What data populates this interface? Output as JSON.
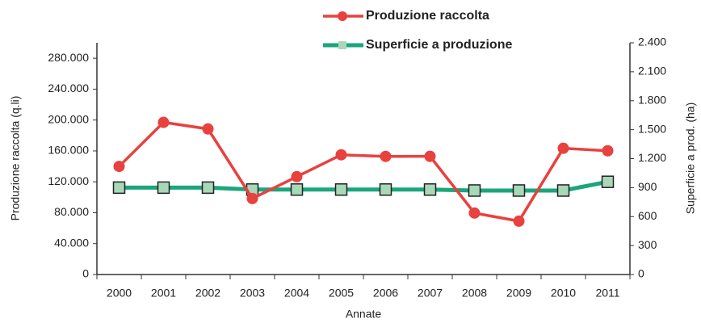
{
  "chart_data": {
    "type": "line",
    "legend": "top",
    "grid": false,
    "xlabel": "Annate",
    "ylabel": "Produzione raccolta (q.li)",
    "y2label": "Superficie a prod. (ha)",
    "categories": [
      "2000",
      "2001",
      "2002",
      "2003",
      "2004",
      "2005",
      "2006",
      "2007",
      "2008",
      "2009",
      "2010",
      "2011"
    ],
    "series": [
      {
        "name": "Produzione raccolta",
        "color": "#e8413e",
        "marker": "circle",
        "values": [
          140000,
          197000,
          188500,
          98400,
          126700,
          155000,
          152900,
          153000,
          79600,
          69100,
          163400,
          160200
        ]
      },
      {
        "name": "Superficie a produzione",
        "color": "#1aa67a",
        "marker": "square",
        "axis": "y2",
        "values": [
          900,
          900,
          900,
          880,
          880,
          880,
          880,
          880,
          870,
          870,
          870,
          960
        ]
      }
    ],
    "ylim": [
      0,
      300000
    ],
    "yticks": [
      0,
      {
        "value": 40000,
        "label": "40.000"
      },
      {
        "value": 80000,
        "label": "80.000"
      },
      {
        "value": 120000,
        "label": "120.000"
      },
      {
        "value": 160000,
        "label": "160.000"
      },
      {
        "value": 200000,
        "label": "200.000"
      },
      {
        "value": 240000,
        "label": "240.000"
      },
      {
        "value": 280000,
        "label": "280.000"
      }
    ],
    "y2lim": [
      0,
      2400
    ],
    "y2ticks": [
      0,
      300,
      600,
      900,
      {
        "value": 1200,
        "label": "1.200"
      },
      {
        "value": 1500,
        "label": "1.500"
      },
      {
        "value": 1800,
        "label": "1.800"
      },
      {
        "value": 2100,
        "label": "2.100"
      },
      {
        "value": 2400,
        "label": "2.400"
      }
    ]
  }
}
